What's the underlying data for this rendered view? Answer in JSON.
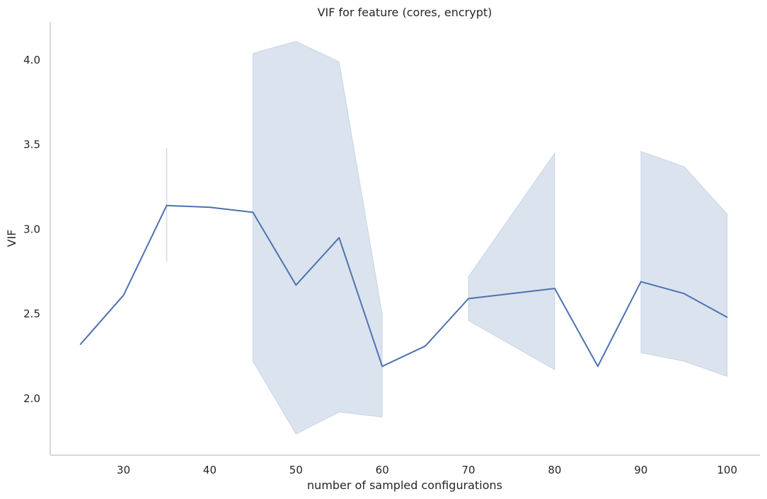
{
  "chart_data": {
    "type": "line",
    "title": "VIF for feature (cores, encrypt)",
    "xlabel": "number of sampled configurations",
    "ylabel": "VIF",
    "xlim": [
      21.5,
      103.8
    ],
    "ylim": [
      1.665,
      4.225
    ],
    "xticks": [
      30,
      40,
      50,
      60,
      70,
      80,
      90,
      100
    ],
    "yticks": [
      2.0,
      2.5,
      3.0,
      3.5,
      4.0
    ],
    "ytick_labels": [
      "2.0",
      "2.5",
      "3.0",
      "3.5",
      "4.0"
    ],
    "grid": false,
    "legend": "none",
    "series": [
      {
        "x": [
          25,
          30,
          35,
          40,
          45,
          50,
          55,
          60,
          65,
          70,
          80,
          85,
          90,
          95,
          100
        ],
        "y": [
          2.32,
          2.61,
          3.14,
          3.13,
          3.1,
          2.67,
          2.95,
          2.19,
          2.31,
          2.59,
          2.65,
          2.19,
          2.69,
          2.62,
          2.48
        ],
        "ci_low": [
          null,
          null,
          2.81,
          null,
          2.22,
          1.79,
          1.92,
          1.89,
          null,
          2.46,
          2.17,
          null,
          2.27,
          2.22,
          2.13
        ],
        "ci_high": [
          null,
          null,
          3.48,
          null,
          4.04,
          4.11,
          3.99,
          2.5,
          null,
          2.72,
          3.45,
          null,
          3.46,
          3.37,
          3.09
        ]
      }
    ],
    "colors": {
      "line": "#4c72b0",
      "band": "#4c72b0",
      "axis": "#cccccc",
      "text": "#262626"
    }
  }
}
